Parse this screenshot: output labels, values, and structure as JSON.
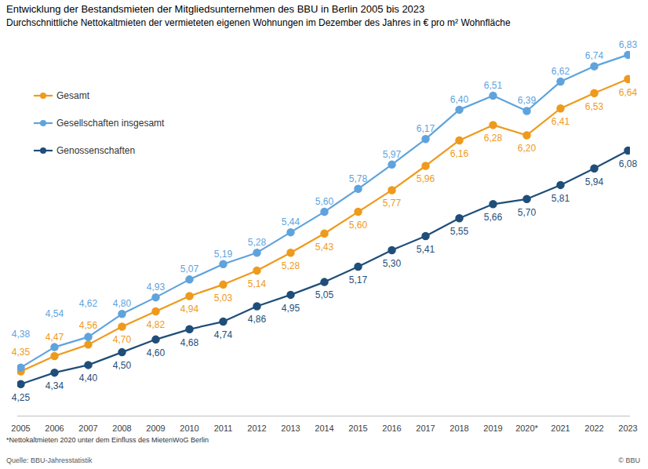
{
  "chart_data": {
    "type": "line",
    "title": "Entwicklung der Bestandsmieten der Mitgliedsunternehmen des BBU in Berlin 2005 bis 2023",
    "subtitle": "Durchschnittliche  Nettokaltmieten der vermieteten eigenen Wohnungen im Dezember des Jahres in € pro m² Wohnfläche",
    "footnote": "*Nettokaltmieten 2020 unter dem Einfluss des MietenWoG Berlin",
    "source": "Quelle: BBU-Jahresstatistik",
    "credit": "© BBU",
    "categories": [
      "2005",
      "2006",
      "2007",
      "2008",
      "2009",
      "2010",
      "2011",
      "2012",
      "2013",
      "2014",
      "2015",
      "2016",
      "2017",
      "2018",
      "2019",
      "2020*",
      "2021",
      "2022",
      "2023"
    ],
    "series": [
      {
        "name": "Gesamt",
        "color": "#ee9a1c",
        "marker": "circle",
        "values": [
          4.35,
          4.47,
          4.56,
          4.7,
          4.82,
          4.94,
          5.03,
          5.14,
          5.28,
          5.43,
          5.6,
          5.77,
          5.96,
          6.16,
          6.28,
          6.2,
          6.41,
          6.53,
          6.64
        ],
        "value_labels": [
          "4,35",
          "4,47",
          "4,56",
          "4,70",
          "4,82",
          "4,94",
          "5,03",
          "5,14",
          "5,28",
          "5,43",
          "5,60",
          "5,77",
          "5,96",
          "6,16",
          "6,28",
          "6,20",
          "6,41",
          "6,53",
          "6,64"
        ]
      },
      {
        "name": "Gesellschaften insgesamt",
        "color": "#5fa3dc",
        "marker": "circle",
        "values": [
          4.38,
          4.54,
          4.62,
          4.8,
          4.93,
          5.07,
          5.19,
          5.28,
          5.44,
          5.6,
          5.78,
          5.97,
          6.17,
          6.4,
          6.51,
          6.39,
          6.62,
          6.74,
          6.83
        ],
        "value_labels": [
          "4,38",
          "4,54",
          "4,62",
          "4,80",
          "4,93",
          "5,07",
          "5,19",
          "5,28",
          "5,44",
          "5,60",
          "5,78",
          "5,97",
          "6,17",
          "6,40",
          "6,51",
          "6,39",
          "6,62",
          "6,74",
          "6,83"
        ]
      },
      {
        "name": "Genossenschaften",
        "color": "#1f4e79",
        "marker": "circle",
        "values": [
          4.25,
          4.34,
          4.4,
          4.5,
          4.6,
          4.68,
          4.74,
          4.86,
          4.95,
          5.05,
          5.17,
          5.3,
          5.41,
          5.55,
          5.66,
          5.7,
          5.81,
          5.94,
          6.08
        ],
        "value_labels": [
          "4,25",
          "4,34",
          "4,40",
          "4,50",
          "4,60",
          "4,68",
          "4,74",
          "4,86",
          "4,95",
          "5,05",
          "5,17",
          "5,30",
          "5,41",
          "5,55",
          "5,66",
          "5,70",
          "5,81",
          "5,94",
          "6,08"
        ]
      }
    ],
    "ylim": [
      4.0,
      6.9
    ],
    "grid": false,
    "legend": "upper left",
    "data_labels": true,
    "tick_labels": "x"
  }
}
